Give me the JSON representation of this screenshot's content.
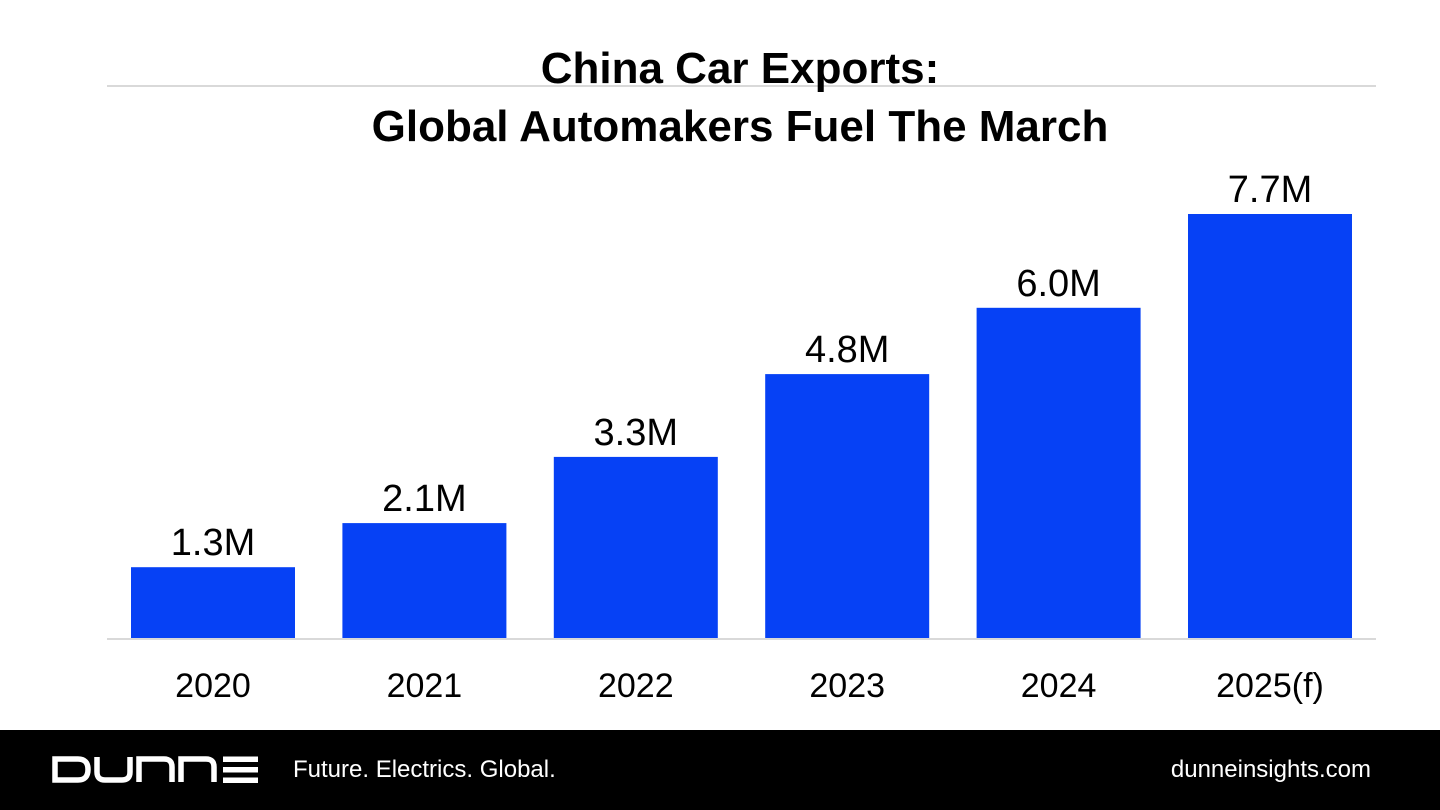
{
  "chart_data": {
    "type": "bar",
    "title": "China Car Exports: Global Automakers Fuel The March",
    "title_lines": [
      "China Car Exports:",
      "Global Automakers Fuel The March"
    ],
    "categories": [
      "2020",
      "2021",
      "2022",
      "2023",
      "2024",
      "2025(f)"
    ],
    "values": [
      1.3,
      2.1,
      3.3,
      4.8,
      6.0,
      7.7
    ],
    "value_labels": [
      "1.3M",
      "2.1M",
      "3.3M",
      "4.8M",
      "6.0M",
      "7.7M"
    ],
    "unit": "M",
    "xlabel": "",
    "ylabel": "",
    "ylim": [
      0,
      7.7
    ],
    "grid": false,
    "legend": "none",
    "bar_color": "#0641F5",
    "axis_color": "#D9D9D9"
  },
  "footer": {
    "logo_text": "DUNNE",
    "tagline": "Future. Electrics. Global.",
    "website": "dunneinsights.com",
    "background": "#000000",
    "text_color": "#FFFFFF"
  }
}
